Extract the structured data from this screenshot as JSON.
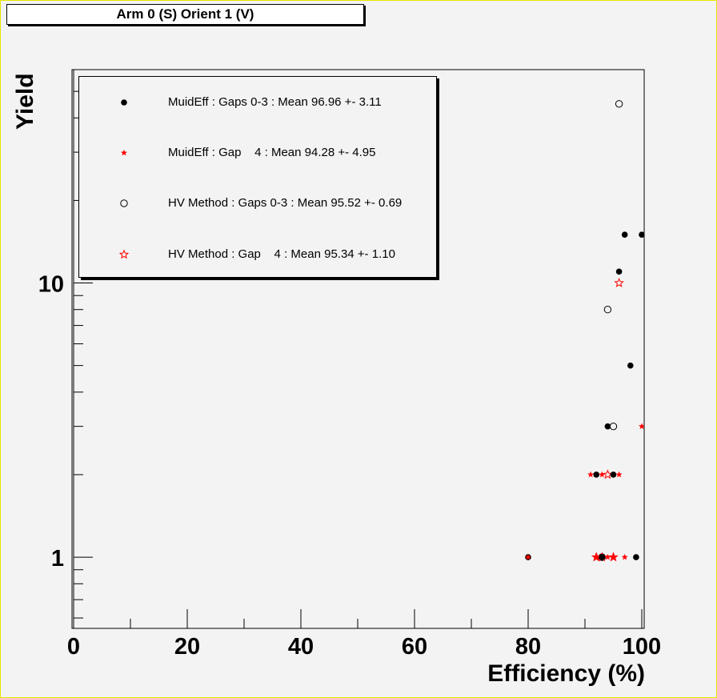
{
  "title": "Arm 0 (S) Orient 1 (V)",
  "chart_data": {
    "type": "scatter",
    "xlabel": "Efficiency (%)",
    "ylabel": "Yield",
    "xlim": [
      0,
      100
    ],
    "ylim": [
      0.55,
      60
    ],
    "yscale": "log",
    "xticks": [
      "0",
      "20",
      "40",
      "60",
      "80",
      "100"
    ],
    "yticks": [
      "1",
      "10"
    ],
    "legend_position": "top-left",
    "series": [
      {
        "name": "MuidEff : Gaps 0-3 : Mean 96.96 +- 3.11",
        "marker": "filled-circle",
        "color": "#000000",
        "points": [
          [
            80,
            1
          ],
          [
            92,
            2
          ],
          [
            93,
            1
          ],
          [
            94,
            3
          ],
          [
            95,
            2
          ],
          [
            96,
            11
          ],
          [
            97,
            15
          ],
          [
            98,
            5
          ],
          [
            99,
            1
          ],
          [
            100,
            15
          ]
        ]
      },
      {
        "name": "MuidEff : Gap    4 : Mean 94.28 +- 4.95",
        "marker": "filled-star",
        "color": "#ff0000",
        "points": [
          [
            80,
            1
          ],
          [
            91,
            2
          ],
          [
            92,
            1
          ],
          [
            93,
            2
          ],
          [
            94,
            1
          ],
          [
            95,
            1
          ],
          [
            96,
            2
          ],
          [
            97,
            1
          ],
          [
            100,
            3
          ]
        ]
      },
      {
        "name": "HV Method : Gaps 0-3 : Mean 95.52 +- 0.69",
        "marker": "open-circle",
        "color": "#000000",
        "points": [
          [
            93,
            1
          ],
          [
            94,
            8
          ],
          [
            95,
            3
          ],
          [
            96,
            45
          ]
        ]
      },
      {
        "name": "HV Method : Gap    4 : Mean 95.34 +- 1.10",
        "marker": "open-star",
        "color": "#ff0000",
        "points": [
          [
            92,
            1
          ],
          [
            93,
            1
          ],
          [
            94,
            2
          ],
          [
            95,
            1
          ],
          [
            96,
            10
          ]
        ]
      }
    ]
  }
}
